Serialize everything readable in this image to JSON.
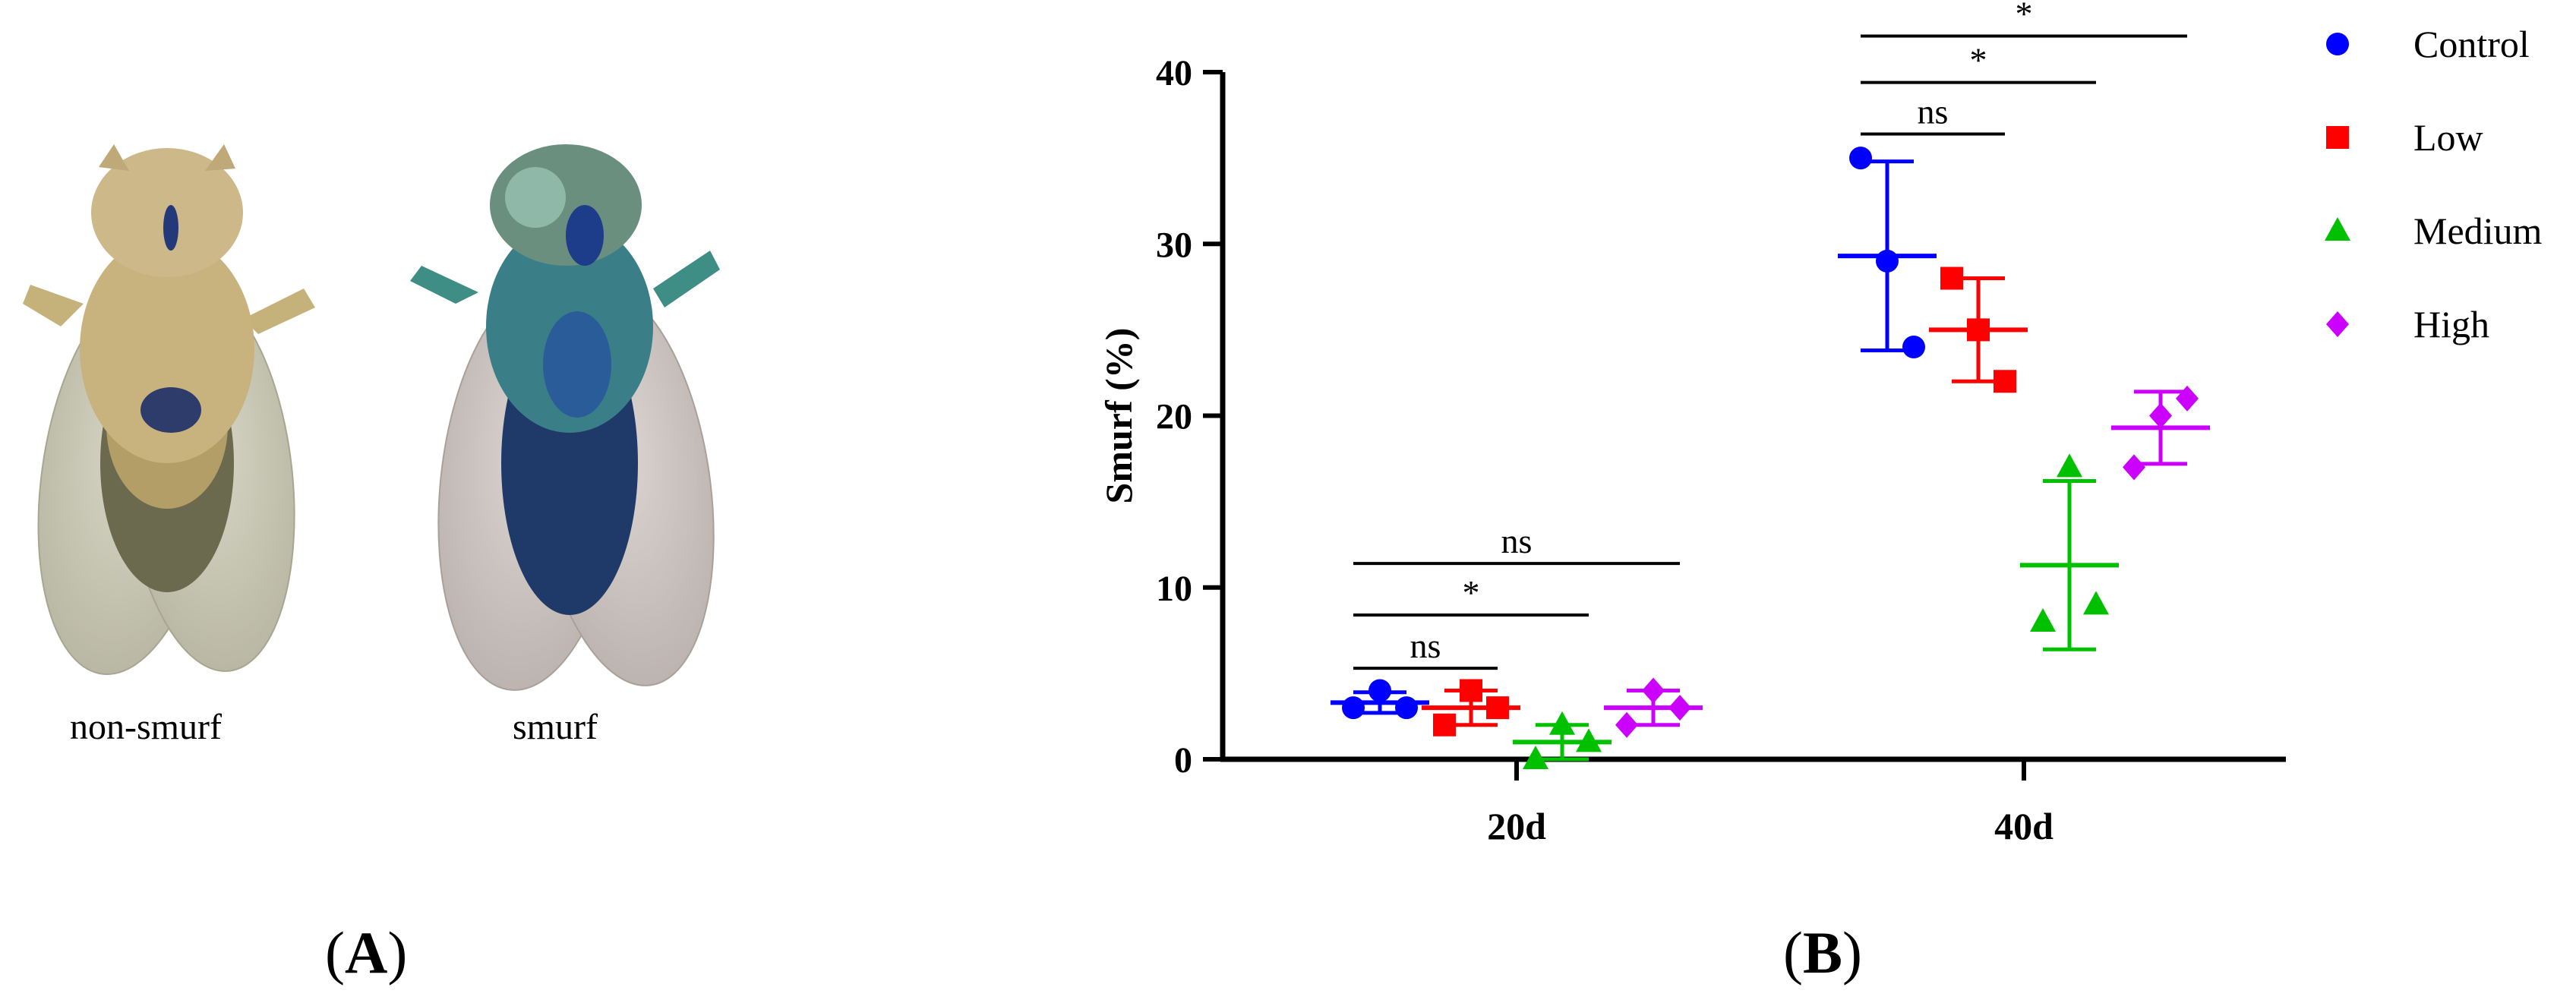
{
  "panel_a": {
    "captions": [
      "non-smurf",
      "smurf"
    ],
    "label_open": "(",
    "label_letter": "A",
    "label_close": ")"
  },
  "panel_b": {
    "label_open": "(",
    "label_letter": "B",
    "label_close": ")"
  },
  "chart_data": {
    "type": "scatter",
    "title": "",
    "xlabel": "",
    "ylabel": "Smurf (%)",
    "categories": [
      "20d",
      "40d"
    ],
    "ylim": [
      0,
      40
    ],
    "yticks": [
      0,
      10,
      20,
      30,
      40
    ],
    "legend_position": "top-right",
    "series": [
      {
        "name": "Control",
        "color": "#0000ff",
        "marker": "circle",
        "points": {
          "20d": [
            3,
            4,
            3
          ],
          "40d": [
            35,
            29,
            24
          ]
        },
        "mean": {
          "20d": 3.3,
          "40d": 29.3
        },
        "sd": {
          "20d": 0.6,
          "40d": 5.5
        }
      },
      {
        "name": "Low",
        "color": "#ff0000",
        "marker": "square",
        "points": {
          "20d": [
            2,
            4,
            3
          ],
          "40d": [
            28,
            25,
            22
          ]
        },
        "mean": {
          "20d": 3.0,
          "40d": 25.0
        },
        "sd": {
          "20d": 1.0,
          "40d": 3.0
        }
      },
      {
        "name": "Medium",
        "color": "#00c000",
        "marker": "triangle",
        "points": {
          "20d": [
            0,
            2,
            1
          ],
          "40d": [
            8,
            17,
            9
          ]
        },
        "mean": {
          "20d": 1.0,
          "40d": 11.3
        },
        "sd": {
          "20d": 1.0,
          "40d": 4.9
        }
      },
      {
        "name": "High",
        "color": "#cc00ff",
        "marker": "diamond",
        "points": {
          "20d": [
            2,
            4,
            3
          ],
          "40d": [
            17,
            20,
            21
          ]
        },
        "mean": {
          "20d": 3.0,
          "40d": 19.3
        },
        "sd": {
          "20d": 1.0,
          "40d": 2.1
        }
      }
    ],
    "significance": [
      {
        "group": "20d",
        "from": "Control",
        "to": "Low",
        "label": "ns",
        "y": 5.3
      },
      {
        "group": "20d",
        "from": "Control",
        "to": "Medium",
        "label": "*",
        "y": 8.4
      },
      {
        "group": "20d",
        "from": "Control",
        "to": "High",
        "label": "ns",
        "y": 11.4
      },
      {
        "group": "40d",
        "from": "Control",
        "to": "Low",
        "label": "ns",
        "y": 36.4
      },
      {
        "group": "40d",
        "from": "Control",
        "to": "Medium",
        "label": "*",
        "y": 39.4
      },
      {
        "group": "40d",
        "from": "Control",
        "to": "High",
        "label": "*",
        "y": 42.1
      }
    ]
  }
}
